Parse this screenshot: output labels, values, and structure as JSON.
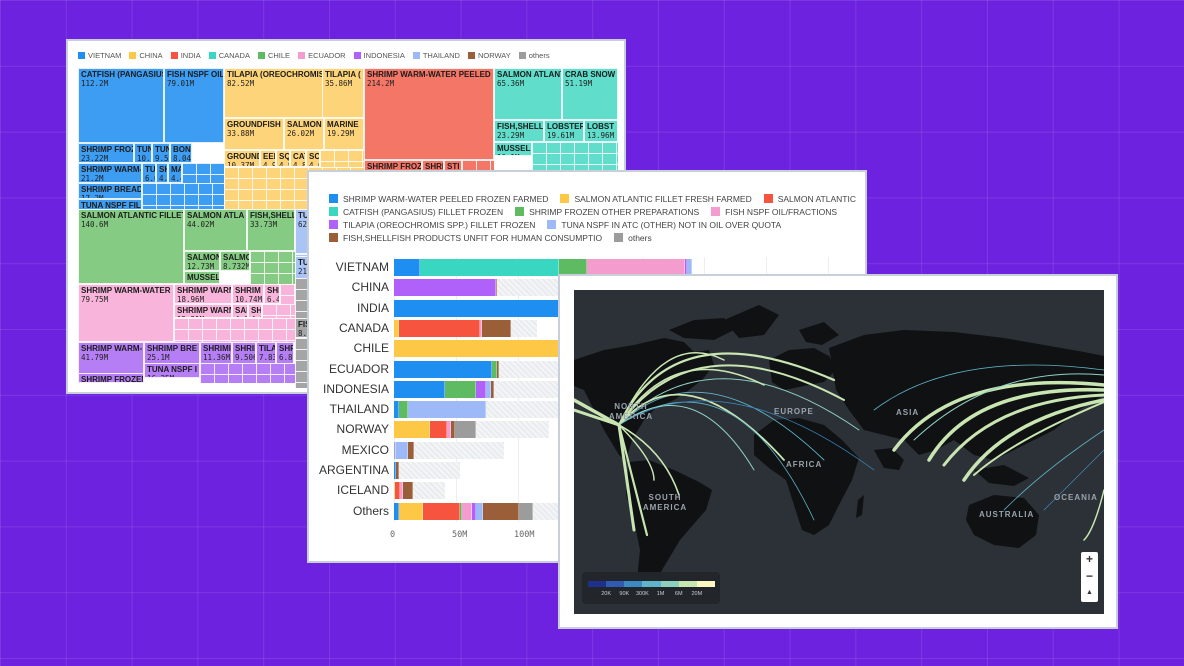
{
  "chart_data": [
    {
      "type": "treemap",
      "title": "",
      "legend": [
        "VIETNAM",
        "CHINA",
        "INDIA",
        "CANADA",
        "CHILE",
        "ECUADOR",
        "INDONESIA",
        "THAILAND",
        "NORWAY",
        "others"
      ],
      "legend_position": "top",
      "colors": {
        "VIETNAM": "#3d9df3",
        "CHINA": "#fed47a",
        "INDIA": "#f47667",
        "CANADA": "#60ddcb",
        "CHILE": "#85cb83",
        "ECUADOR": "#f9b4dc",
        "INDONESIA": "#b67ef4",
        "THAILAND": "#a9c4f5",
        "NORWAY": "#a36b48",
        "others": "#a5a5a5"
      },
      "nodes": [
        {
          "group": "VIETNAM",
          "name": "CATFISH (PANGASIUS",
          "value": "112.2M"
        },
        {
          "group": "VIETNAM",
          "name": "FISH NSPF OIL,",
          "value": "79.01M"
        },
        {
          "group": "VIETNAM",
          "name": "SHRIMP FROZEN",
          "value": "23.22M"
        },
        {
          "group": "VIETNAM",
          "name": "TUNA N",
          "value": "10.76M"
        },
        {
          "group": "VIETNAM",
          "name": "TUNA",
          "value": "9.534M"
        },
        {
          "group": "VIETNAM",
          "name": "BONI",
          "value": "8.04"
        },
        {
          "group": "VIETNAM",
          "name": "SHRIMP WARM-",
          "value": "21.2M"
        },
        {
          "group": "VIETNAM",
          "name": "TUN",
          "value": "6.03"
        },
        {
          "group": "VIETNAM",
          "name": "SHI",
          "value": "4.6"
        },
        {
          "group": "VIETNAM",
          "name": "MA",
          "value": "4.4"
        },
        {
          "group": "VIETNAM",
          "name": "SHRIMP BREADE",
          "value": "17.2M"
        },
        {
          "group": "VIETNAM",
          "name": "TUNA NSPF FILL",
          "value": "16.73M"
        },
        {
          "group": "CHINA",
          "name": "TILAPIA (OREOCHROMIS",
          "value": "82.52M"
        },
        {
          "group": "CHINA",
          "name": "TILAPIA (",
          "value": "35.86M"
        },
        {
          "group": "CHINA",
          "name": "GROUNDFISH",
          "value": "33.88M"
        },
        {
          "group": "CHINA",
          "name": "SALMON N",
          "value": "26.02M"
        },
        {
          "group": "CHINA",
          "name": "MARINE",
          "value": "19.29M"
        },
        {
          "group": "CHINA",
          "name": "GROUND",
          "value": "10.37M"
        },
        {
          "group": "CHINA",
          "name": "EEL",
          "value": "4.9"
        },
        {
          "group": "CHINA",
          "name": "SQL",
          "value": "4.9"
        },
        {
          "group": "CHINA",
          "name": "CAT",
          "value": "4.8"
        },
        {
          "group": "CHINA",
          "name": "SCA",
          "value": "4.6"
        },
        {
          "group": "INDIA",
          "name": "SHRIMP WARM-WATER PEELED F",
          "value": "214.2M"
        },
        {
          "group": "INDIA",
          "name": "SHRIMP FROZE",
          "value": ""
        },
        {
          "group": "INDIA",
          "name": "SHRI",
          "value": ""
        },
        {
          "group": "INDIA",
          "name": "STI",
          "value": ""
        },
        {
          "group": "CANADA",
          "name": "SALMON ATLANT",
          "value": "65.36M"
        },
        {
          "group": "CANADA",
          "name": "CRAB SNOW",
          "value": "51.19M"
        },
        {
          "group": "CANADA",
          "name": "FISH,SHELLI",
          "value": "23.29M"
        },
        {
          "group": "CANADA",
          "name": "LOBSTER",
          "value": "19.61M"
        },
        {
          "group": "CANADA",
          "name": "LOBST",
          "value": "13.96M"
        },
        {
          "group": "CANADA",
          "name": "MUSSEL",
          "value": "10.1M"
        },
        {
          "group": "CHILE",
          "name": "SALMON ATLANTIC FILLET",
          "value": "140.6M"
        },
        {
          "group": "CHILE",
          "name": "SALMON ATLA",
          "value": "44.02M"
        },
        {
          "group": "CHILE",
          "name": "FISH,SHELL",
          "value": "33.73M"
        },
        {
          "group": "CHILE",
          "name": "SALMON",
          "value": "12.73M"
        },
        {
          "group": "CHILE",
          "name": "SALMO",
          "value": "8.732M"
        },
        {
          "group": "CHILE",
          "name": "MUSSEL",
          "value": "9.986M"
        },
        {
          "group": "ECUADOR",
          "name": "SHRIMP WARM-WATER",
          "value": "79.75M"
        },
        {
          "group": "ECUADOR",
          "name": "SHRIMP WARM",
          "value": "18.96M"
        },
        {
          "group": "ECUADOR",
          "name": "SHRIMP WARM",
          "value": "15.31M"
        },
        {
          "group": "ECUADOR",
          "name": "SHRIM",
          "value": "10.74M"
        },
        {
          "group": "ECUADOR",
          "name": "SHF",
          "value": "6.4"
        },
        {
          "group": "ECUADOR",
          "name": "SAF",
          "value": "4.6"
        },
        {
          "group": "ECUADOR",
          "name": "SHI",
          "value": "4.2"
        },
        {
          "group": "INDONESIA",
          "name": "SHRIMP WARM-",
          "value": "41.79M"
        },
        {
          "group": "INDONESIA",
          "name": "SHRIMP BRE",
          "value": "25.1M"
        },
        {
          "group": "INDONESIA",
          "name": "SHRIMI",
          "value": "11.36M"
        },
        {
          "group": "INDONESIA",
          "name": "SHRIN",
          "value": "9.506"
        },
        {
          "group": "INDONESIA",
          "name": "TILA",
          "value": "7.83"
        },
        {
          "group": "INDONESIA",
          "name": "SHR",
          "value": "6.8"
        },
        {
          "group": "INDONESIA",
          "name": "TUNA NSPF I",
          "value": "16.35M"
        },
        {
          "group": "INDONESIA",
          "name": "SHRIMP FROZEN",
          "value": ""
        },
        {
          "group": "THAILAND",
          "name": "TUI",
          "value": "62."
        },
        {
          "group": "THAILAND",
          "name": "TUI",
          "value": "21M"
        },
        {
          "group": "others",
          "name": "FIS",
          "value": "8.2"
        }
      ]
    },
    {
      "type": "bar",
      "orientation": "horizontal",
      "stacked": true,
      "title": "",
      "xlabel": "",
      "ylabel": "",
      "x_ticks": [
        "0",
        "50M",
        "100M"
      ],
      "grid": true,
      "legend_position": "top",
      "categories": [
        "VIETNAM",
        "CHINA",
        "INDIA",
        "CANADA",
        "CHILE",
        "ECUADOR",
        "INDONESIA",
        "THAILAND",
        "NORWAY",
        "MEXICO",
        "ARGENTINA",
        "ICELAND",
        "Others"
      ],
      "series": [
        {
          "name": "SHRIMP WARM-WATER PEELED FROZEN FARMED",
          "color": "#1f8ef1",
          "values": [
            21,
            0,
            214,
            0,
            0,
            79,
            41,
            4,
            0,
            1,
            2,
            0,
            4
          ]
        },
        {
          "name": "SALMON ATLANTIC FILLET FRESH FARMED",
          "color": "#fcc846",
          "values": [
            0,
            0,
            0,
            4,
            141,
            0,
            0,
            0,
            29,
            0,
            0,
            1,
            19
          ]
        },
        {
          "name": "SALMON ATLANTIC",
          "color": "#f75440",
          "values": [
            0,
            0,
            0,
            65,
            0,
            0,
            0,
            0,
            14,
            0,
            0,
            4,
            30
          ]
        },
        {
          "name": "CATFISH (PANGASIUS) FILLET FROZEN",
          "color": "#39d7c2",
          "values": [
            112,
            0,
            0,
            0,
            0,
            0,
            0,
            0,
            0,
            0,
            0,
            0,
            0
          ]
        },
        {
          "name": "SHRIMP FROZEN OTHER PREPARATIONS",
          "color": "#5fbb61",
          "values": [
            23,
            0,
            0,
            0,
            0,
            4,
            25,
            7,
            0,
            0,
            0,
            0,
            2
          ]
        },
        {
          "name": "FISH NSPF OIL/FRACTIONS",
          "color": "#f59ccf",
          "values": [
            79,
            0,
            0,
            2,
            0,
            0,
            0,
            0,
            3,
            1,
            0,
            2,
            8
          ]
        },
        {
          "name": "TILAPIA (OREOCHROMIS SPP.) FILLET FROZEN",
          "color": "#b061f9",
          "values": [
            1,
            82,
            0,
            0,
            0,
            0,
            8,
            0,
            0,
            0,
            0,
            0,
            3
          ]
        },
        {
          "name": "TUNA NSPF IN ATC (OTHER) NOT IN OIL OVER QUOTA",
          "color": "#9db9f8",
          "values": [
            4,
            0,
            0,
            0,
            0,
            0,
            4,
            63,
            0,
            9,
            0,
            0,
            6
          ]
        },
        {
          "name": "FISH,SHELLFISH PRODUCTS UNFIT FOR HUMAN CONSUMPTIO",
          "color": "#9a5e39",
          "values": [
            0,
            1,
            0,
            23,
            0,
            2,
            3,
            0,
            3,
            5,
            2,
            8,
            29
          ]
        },
        {
          "name": "others",
          "color": "#9c9c9c",
          "values": [
            0,
            0,
            0,
            0,
            0,
            0,
            0,
            0,
            17,
            0,
            0,
            0,
            11
          ]
        }
      ],
      "totals_track": [
        122,
        135,
        214,
        115,
        141,
        135,
        135,
        135,
        125,
        89,
        53,
        41,
        135
      ]
    },
    {
      "type": "map",
      "title": "",
      "basemap": "dark world map with flow arcs",
      "region_labels": [
        "NORTH AMERICA",
        "EUROPE",
        "ASIA",
        "AFRICA",
        "SOUTH AMERICA",
        "AUSTRALIA",
        "OCEANIA"
      ],
      "color_scale": {
        "ticks": [
          "20K",
          "90K",
          "300K",
          "1M",
          "6M",
          "20M"
        ],
        "colors": [
          "#1f2f8c",
          "#2f5bb0",
          "#3c8ac4",
          "#5fb4c8",
          "#8cd1bb",
          "#c8e6b3",
          "#fdf7c4"
        ]
      }
    }
  ],
  "treemap_card": {
    "legend": [
      {
        "label": "VIETNAM",
        "color": "#1f8ef1"
      },
      {
        "label": "CHINA",
        "color": "#fcc846"
      },
      {
        "label": "INDIA",
        "color": "#f75440"
      },
      {
        "label": "CANADA",
        "color": "#39d7c2"
      },
      {
        "label": "CHILE",
        "color": "#5fbb61"
      },
      {
        "label": "ECUADOR",
        "color": "#f59ccf"
      },
      {
        "label": "INDONESIA",
        "color": "#b061f9"
      },
      {
        "label": "THAILAND",
        "color": "#9db9f8"
      },
      {
        "label": "NORWAY",
        "color": "#9a5e39"
      },
      {
        "label": "others",
        "color": "#9c9c9c"
      }
    ]
  },
  "bar_card": {
    "legend_rows": [
      [
        {
          "label": "SHRIMP WARM-WATER PEELED FROZEN FARMED",
          "color": "#1f8ef1"
        },
        {
          "label": "SALMON ATLANTIC FILLET FRESH FARMED",
          "color": "#fcc846"
        },
        {
          "label": "SALMON ATLANTIC",
          "color": "#f75440"
        }
      ],
      [
        {
          "label": "CATFISH (PANGASIUS) FILLET FROZEN",
          "color": "#39d7c2"
        },
        {
          "label": "SHRIMP FROZEN OTHER PREPARATIONS",
          "color": "#5fbb61"
        },
        {
          "label": "FISH NSPF OIL/FRACTIONS",
          "color": "#f59ccf"
        }
      ],
      [
        {
          "label": "TILAPIA (OREOCHROMIS SPP.) FILLET FROZEN",
          "color": "#b061f9"
        },
        {
          "label": "TUNA NSPF IN ATC (OTHER) NOT IN OIL OVER QUOTA",
          "color": "#9db9f8"
        }
      ],
      [
        {
          "label": "FISH,SHELLFISH PRODUCTS UNFIT FOR HUMAN CONSUMPTIO",
          "color": "#9a5e39"
        },
        {
          "label": "others",
          "color": "#9c9c9c"
        }
      ]
    ],
    "ticks": [
      "0",
      "50M",
      "100M"
    ]
  },
  "map_card": {
    "labels": {
      "north_america": "NORTH\nAMERICA",
      "europe": "EUROPE",
      "asia": "ASIA",
      "africa": "AFRICA",
      "south_america": "SOUTH\nAMERICA",
      "australia": "AUSTRALIA",
      "oceania": "OCEANIA"
    },
    "scale_ticks": [
      "20K",
      "90K",
      "300K",
      "1M",
      "6M",
      "20M"
    ],
    "zoom_in": "+",
    "zoom_out": "−",
    "reset_north": "▲"
  }
}
